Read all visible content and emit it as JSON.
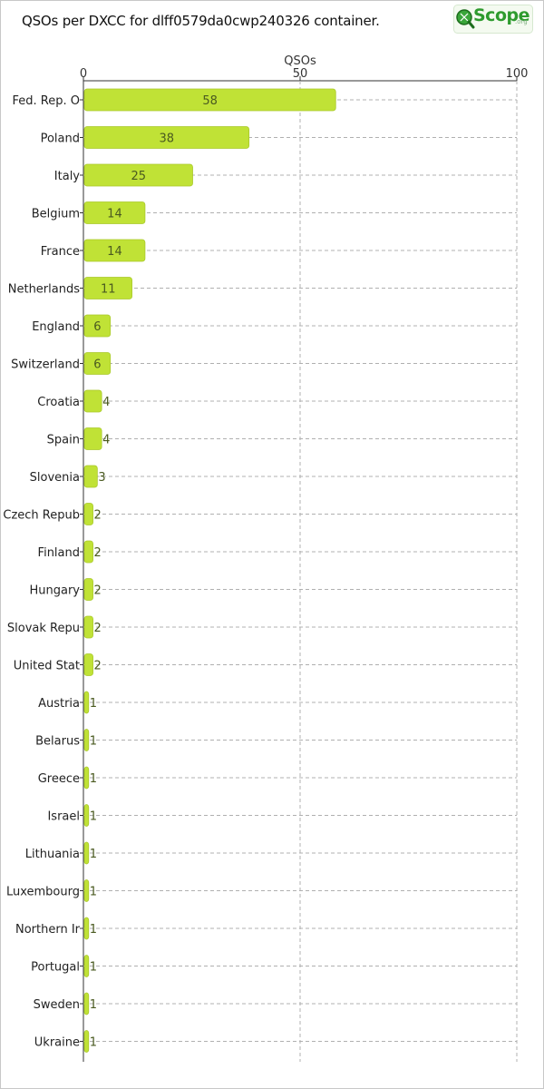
{
  "page_title": "QSOs per DXCC for dlff0579da0cwp240326 container.",
  "logo": {
    "main": "Scope",
    "sub": ".org"
  },
  "colors": {
    "bar": "#c0e236",
    "bar_stroke": "#a9c92a",
    "grid": "#b0b0b0",
    "axis": "#333333"
  },
  "chart_data": {
    "type": "bar",
    "orientation": "horizontal",
    "title": "QSOs per DXCC for dlff0579da0cwp240326 container.",
    "xlabel": "QSOs",
    "ylabel": "",
    "xlim": [
      0,
      100
    ],
    "xticks": [
      0,
      50,
      100
    ],
    "grid": true,
    "categories": [
      "Fed. Rep. O",
      "Poland",
      "Italy",
      "Belgium",
      "France",
      "Netherlands",
      "England",
      "Switzerland",
      "Croatia",
      "Spain",
      "Slovenia",
      "Czech Repub",
      "Finland",
      "Hungary",
      "Slovak Repu",
      "United Stat",
      "Austria",
      "Belarus",
      "Greece",
      "Israel",
      "Lithuania",
      "Luxembourg",
      "Northern Ir",
      "Portugal",
      "Sweden",
      "Ukraine"
    ],
    "values": [
      58,
      38,
      25,
      14,
      14,
      11,
      6,
      6,
      4,
      4,
      3,
      2,
      2,
      2,
      2,
      2,
      1,
      1,
      1,
      1,
      1,
      1,
      1,
      1,
      1,
      1
    ]
  }
}
